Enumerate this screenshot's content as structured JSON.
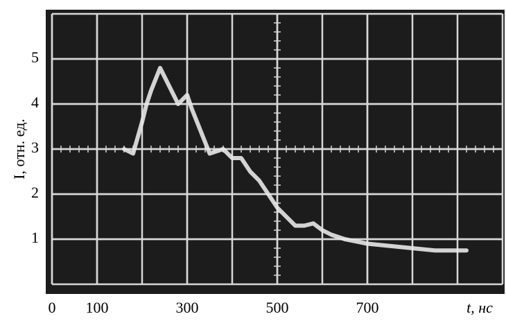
{
  "chart_data": {
    "type": "line",
    "x_label": "t, нс",
    "y_label": "I, отн. ед.",
    "xlim": [
      0,
      1000
    ],
    "ylim": [
      0,
      6
    ],
    "xticks": [
      0,
      100,
      300,
      500,
      700
    ],
    "yticks": [
      1,
      2,
      3,
      4,
      5
    ],
    "grid": true,
    "series": [
      {
        "color": "#e8e8e8",
        "x": [
          160,
          180,
          200,
          210,
          220,
          240,
          260,
          280,
          300,
          310,
          330,
          350,
          380,
          400,
          420,
          440,
          460,
          480,
          500,
          520,
          540,
          560,
          580,
          600,
          620,
          650,
          700,
          750,
          800,
          850,
          900,
          920
        ],
        "values": [
          3.0,
          2.9,
          3.6,
          4.0,
          4.3,
          4.8,
          4.4,
          4.0,
          4.2,
          3.9,
          3.4,
          2.9,
          3.0,
          2.8,
          2.8,
          2.5,
          2.3,
          2.0,
          1.7,
          1.5,
          1.3,
          1.3,
          1.35,
          1.2,
          1.1,
          1.0,
          0.9,
          0.85,
          0.8,
          0.75,
          0.75,
          0.75
        ]
      }
    ]
  }
}
